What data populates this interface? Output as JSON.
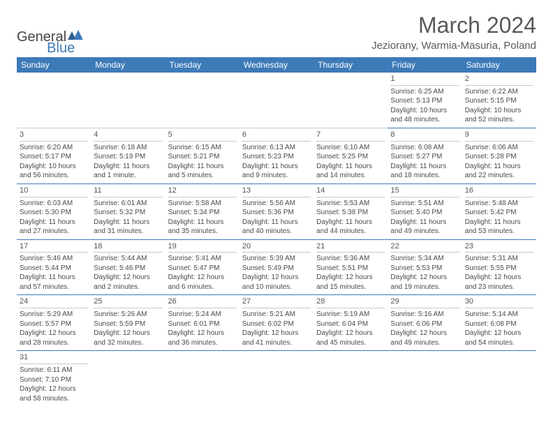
{
  "brand": {
    "part1": "General",
    "part2": "Blue"
  },
  "header": {
    "month": "March 2024",
    "location": "Jeziorany, Warmia-Masuria, Poland"
  },
  "dayNames": [
    "Sunday",
    "Monday",
    "Tuesday",
    "Wednesday",
    "Thursday",
    "Friday",
    "Saturday"
  ],
  "colors": {
    "accent": "#3d7ab8",
    "text": "#4a4a4a"
  },
  "weeks": [
    [
      null,
      null,
      null,
      null,
      null,
      {
        "n": "1",
        "sr": "Sunrise: 6:25 AM",
        "ss": "Sunset: 5:13 PM",
        "dl": "Daylight: 10 hours and 48 minutes."
      },
      {
        "n": "2",
        "sr": "Sunrise: 6:22 AM",
        "ss": "Sunset: 5:15 PM",
        "dl": "Daylight: 10 hours and 52 minutes."
      }
    ],
    [
      {
        "n": "3",
        "sr": "Sunrise: 6:20 AM",
        "ss": "Sunset: 5:17 PM",
        "dl": "Daylight: 10 hours and 56 minutes."
      },
      {
        "n": "4",
        "sr": "Sunrise: 6:18 AM",
        "ss": "Sunset: 5:19 PM",
        "dl": "Daylight: 11 hours and 1 minute."
      },
      {
        "n": "5",
        "sr": "Sunrise: 6:15 AM",
        "ss": "Sunset: 5:21 PM",
        "dl": "Daylight: 11 hours and 5 minutes."
      },
      {
        "n": "6",
        "sr": "Sunrise: 6:13 AM",
        "ss": "Sunset: 5:23 PM",
        "dl": "Daylight: 11 hours and 9 minutes."
      },
      {
        "n": "7",
        "sr": "Sunrise: 6:10 AM",
        "ss": "Sunset: 5:25 PM",
        "dl": "Daylight: 11 hours and 14 minutes."
      },
      {
        "n": "8",
        "sr": "Sunrise: 6:08 AM",
        "ss": "Sunset: 5:27 PM",
        "dl": "Daylight: 11 hours and 18 minutes."
      },
      {
        "n": "9",
        "sr": "Sunrise: 6:06 AM",
        "ss": "Sunset: 5:28 PM",
        "dl": "Daylight: 11 hours and 22 minutes."
      }
    ],
    [
      {
        "n": "10",
        "sr": "Sunrise: 6:03 AM",
        "ss": "Sunset: 5:30 PM",
        "dl": "Daylight: 11 hours and 27 minutes."
      },
      {
        "n": "11",
        "sr": "Sunrise: 6:01 AM",
        "ss": "Sunset: 5:32 PM",
        "dl": "Daylight: 11 hours and 31 minutes."
      },
      {
        "n": "12",
        "sr": "Sunrise: 5:58 AM",
        "ss": "Sunset: 5:34 PM",
        "dl": "Daylight: 11 hours and 35 minutes."
      },
      {
        "n": "13",
        "sr": "Sunrise: 5:56 AM",
        "ss": "Sunset: 5:36 PM",
        "dl": "Daylight: 11 hours and 40 minutes."
      },
      {
        "n": "14",
        "sr": "Sunrise: 5:53 AM",
        "ss": "Sunset: 5:38 PM",
        "dl": "Daylight: 11 hours and 44 minutes."
      },
      {
        "n": "15",
        "sr": "Sunrise: 5:51 AM",
        "ss": "Sunset: 5:40 PM",
        "dl": "Daylight: 11 hours and 49 minutes."
      },
      {
        "n": "16",
        "sr": "Sunrise: 5:48 AM",
        "ss": "Sunset: 5:42 PM",
        "dl": "Daylight: 11 hours and 53 minutes."
      }
    ],
    [
      {
        "n": "17",
        "sr": "Sunrise: 5:46 AM",
        "ss": "Sunset: 5:44 PM",
        "dl": "Daylight: 11 hours and 57 minutes."
      },
      {
        "n": "18",
        "sr": "Sunrise: 5:44 AM",
        "ss": "Sunset: 5:46 PM",
        "dl": "Daylight: 12 hours and 2 minutes."
      },
      {
        "n": "19",
        "sr": "Sunrise: 5:41 AM",
        "ss": "Sunset: 5:47 PM",
        "dl": "Daylight: 12 hours and 6 minutes."
      },
      {
        "n": "20",
        "sr": "Sunrise: 5:39 AM",
        "ss": "Sunset: 5:49 PM",
        "dl": "Daylight: 12 hours and 10 minutes."
      },
      {
        "n": "21",
        "sr": "Sunrise: 5:36 AM",
        "ss": "Sunset: 5:51 PM",
        "dl": "Daylight: 12 hours and 15 minutes."
      },
      {
        "n": "22",
        "sr": "Sunrise: 5:34 AM",
        "ss": "Sunset: 5:53 PM",
        "dl": "Daylight: 12 hours and 19 minutes."
      },
      {
        "n": "23",
        "sr": "Sunrise: 5:31 AM",
        "ss": "Sunset: 5:55 PM",
        "dl": "Daylight: 12 hours and 23 minutes."
      }
    ],
    [
      {
        "n": "24",
        "sr": "Sunrise: 5:29 AM",
        "ss": "Sunset: 5:57 PM",
        "dl": "Daylight: 12 hours and 28 minutes."
      },
      {
        "n": "25",
        "sr": "Sunrise: 5:26 AM",
        "ss": "Sunset: 5:59 PM",
        "dl": "Daylight: 12 hours and 32 minutes."
      },
      {
        "n": "26",
        "sr": "Sunrise: 5:24 AM",
        "ss": "Sunset: 6:01 PM",
        "dl": "Daylight: 12 hours and 36 minutes."
      },
      {
        "n": "27",
        "sr": "Sunrise: 5:21 AM",
        "ss": "Sunset: 6:02 PM",
        "dl": "Daylight: 12 hours and 41 minutes."
      },
      {
        "n": "28",
        "sr": "Sunrise: 5:19 AM",
        "ss": "Sunset: 6:04 PM",
        "dl": "Daylight: 12 hours and 45 minutes."
      },
      {
        "n": "29",
        "sr": "Sunrise: 5:16 AM",
        "ss": "Sunset: 6:06 PM",
        "dl": "Daylight: 12 hours and 49 minutes."
      },
      {
        "n": "30",
        "sr": "Sunrise: 5:14 AM",
        "ss": "Sunset: 6:08 PM",
        "dl": "Daylight: 12 hours and 54 minutes."
      }
    ],
    [
      {
        "n": "31",
        "sr": "Sunrise: 6:11 AM",
        "ss": "Sunset: 7:10 PM",
        "dl": "Daylight: 12 hours and 58 minutes."
      },
      null,
      null,
      null,
      null,
      null,
      null
    ]
  ]
}
